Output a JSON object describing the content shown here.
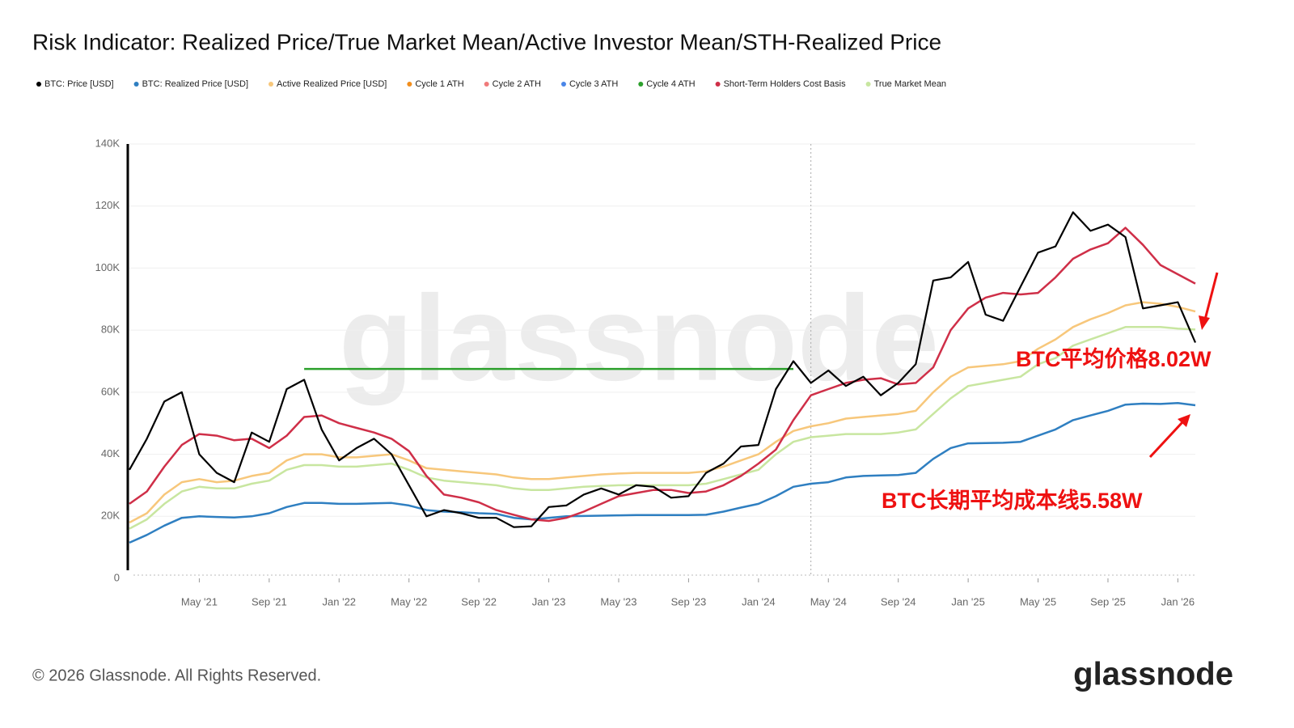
{
  "chart_data": {
    "type": "line",
    "title": "Risk Indicator: Realized Price/True Market Mean/Active Investor Mean/STH-Realized Price",
    "x": [
      "2021-01",
      "2021-02",
      "2021-03",
      "2021-04",
      "2021-05",
      "2021-06",
      "2021-07",
      "2021-08",
      "2021-09",
      "2021-10",
      "2021-11",
      "2021-12",
      "2022-01",
      "2022-02",
      "2022-03",
      "2022-04",
      "2022-05",
      "2022-06",
      "2022-07",
      "2022-08",
      "2022-09",
      "2022-10",
      "2022-11",
      "2022-12",
      "2023-01",
      "2023-02",
      "2023-03",
      "2023-04",
      "2023-05",
      "2023-06",
      "2023-07",
      "2023-08",
      "2023-09",
      "2023-10",
      "2023-11",
      "2023-12",
      "2024-01",
      "2024-02",
      "2024-03",
      "2024-04",
      "2024-05",
      "2024-06",
      "2024-07",
      "2024-08",
      "2024-09",
      "2024-10",
      "2024-11",
      "2024-12",
      "2025-01",
      "2025-02",
      "2025-03",
      "2025-04",
      "2025-05",
      "2025-06",
      "2025-07",
      "2025-08",
      "2025-09",
      "2025-10",
      "2025-11",
      "2025-12",
      "2026-01",
      "2026-02"
    ],
    "series": [
      {
        "name": "BTC: Price [USD]",
        "color": "#000000",
        "values": [
          35000,
          45000,
          57000,
          60000,
          40000,
          34000,
          31000,
          47000,
          44000,
          61000,
          64000,
          48000,
          38000,
          42000,
          45000,
          40000,
          30000,
          20000,
          22000,
          21000,
          19500,
          19500,
          16500,
          16800,
          23000,
          23500,
          27000,
          29000,
          27000,
          30000,
          29500,
          26000,
          26500,
          34000,
          37000,
          42500,
          43000,
          61000,
          70000,
          63000,
          67000,
          62000,
          65000,
          59000,
          63000,
          69000,
          96000,
          97000,
          102000,
          85000,
          83000,
          94000,
          105000,
          107000,
          118000,
          112000,
          114000,
          110000,
          87000,
          88000,
          89000,
          76000
        ]
      },
      {
        "name": "BTC: Realized Price [USD]",
        "color": "#2f7fc1",
        "values": [
          11500,
          14000,
          17000,
          19500,
          20000,
          19800,
          19600,
          20000,
          21000,
          23000,
          24300,
          24300,
          24000,
          24000,
          24200,
          24300,
          23500,
          22000,
          21500,
          21300,
          21000,
          20800,
          19500,
          19000,
          19500,
          20000,
          20100,
          20200,
          20300,
          20400,
          20400,
          20400,
          20400,
          20500,
          21500,
          22800,
          24000,
          26500,
          29500,
          30500,
          31000,
          32500,
          33000,
          33200,
          33300,
          34000,
          38500,
          42000,
          43500,
          43600,
          43700,
          44000,
          46000,
          48000,
          51000,
          52500,
          54000,
          56000,
          56300,
          56200,
          56500,
          55800
        ]
      },
      {
        "name": "Active Realized Price [USD]",
        "color": "#f7c77b",
        "values": [
          18000,
          21000,
          27000,
          31000,
          32000,
          31000,
          31500,
          33000,
          34000,
          38000,
          40000,
          40000,
          39000,
          39000,
          39500,
          40000,
          38000,
          35500,
          35000,
          34500,
          34000,
          33500,
          32500,
          32000,
          32000,
          32500,
          33000,
          33500,
          33800,
          34000,
          34000,
          34000,
          34000,
          34500,
          36000,
          38000,
          40000,
          44000,
          47500,
          49000,
          50000,
          51500,
          52000,
          52500,
          53000,
          54000,
          60000,
          65000,
          68000,
          68500,
          69000,
          70000,
          74000,
          77000,
          81000,
          83500,
          85500,
          88000,
          89000,
          88500,
          87500,
          86000
        ]
      },
      {
        "name": "Cycle 1 ATH",
        "color": "#f28e1c",
        "values": [
          null,
          null,
          null,
          null,
          null,
          null,
          null,
          null,
          null,
          null,
          null,
          null,
          null,
          null,
          null,
          null,
          null,
          null,
          null,
          null,
          null,
          null,
          null,
          null,
          null,
          null,
          null,
          null,
          null,
          null,
          null,
          null,
          null,
          null,
          null,
          null,
          null,
          null,
          null,
          null,
          null,
          null,
          null,
          null,
          null,
          null,
          null,
          null,
          null,
          null,
          null,
          null,
          null,
          null,
          null,
          null,
          null,
          null,
          null,
          null,
          null,
          null
        ]
      },
      {
        "name": "Cycle 2 ATH",
        "color": "#f07a7a",
        "values": [
          null,
          null,
          null,
          null,
          null,
          null,
          null,
          null,
          null,
          null,
          null,
          null,
          null,
          null,
          null,
          null,
          null,
          null,
          null,
          null,
          null,
          null,
          null,
          null,
          null,
          null,
          null,
          null,
          null,
          null,
          null,
          null,
          null,
          null,
          null,
          null,
          null,
          null,
          null,
          null,
          null,
          null,
          null,
          null,
          null,
          null,
          null,
          null,
          null,
          null,
          null,
          null,
          null,
          null,
          null,
          null,
          null,
          null,
          null,
          null,
          null,
          null
        ]
      },
      {
        "name": "Cycle 3 ATH",
        "color": "#4a86e8",
        "values": [
          null,
          null,
          null,
          null,
          null,
          null,
          null,
          null,
          null,
          null,
          null,
          null,
          null,
          null,
          null,
          null,
          null,
          null,
          null,
          null,
          null,
          null,
          null,
          null,
          null,
          null,
          null,
          null,
          null,
          null,
          null,
          null,
          null,
          null,
          null,
          null,
          null,
          null,
          null,
          null,
          null,
          null,
          null,
          null,
          null,
          null,
          null,
          null,
          null,
          null,
          null,
          null,
          null,
          null,
          null,
          null,
          null,
          null,
          null,
          null,
          null,
          null
        ]
      },
      {
        "name": "Cycle 4 ATH",
        "color": "#2ca02c",
        "values": [
          null,
          null,
          null,
          null,
          null,
          null,
          null,
          null,
          null,
          null,
          67500,
          67500,
          67500,
          67500,
          67500,
          67500,
          67500,
          67500,
          67500,
          67500,
          67500,
          67500,
          67500,
          67500,
          67500,
          67500,
          67500,
          67500,
          67500,
          67500,
          67500,
          67500,
          67500,
          67500,
          67500,
          67500,
          67500,
          67500,
          67500,
          null,
          null,
          null,
          null,
          null,
          null,
          null,
          null,
          null,
          null,
          null,
          null,
          null,
          null,
          null,
          null,
          null,
          null,
          null,
          null,
          null,
          null,
          null
        ]
      },
      {
        "name": "Short-Term Holders Cost Basis",
        "color": "#cf2f48",
        "values": [
          24000,
          28000,
          36000,
          43000,
          46500,
          46000,
          44500,
          45000,
          42000,
          46000,
          52000,
          52500,
          50000,
          48500,
          47000,
          45000,
          41000,
          33000,
          27000,
          26000,
          24500,
          22000,
          20500,
          19000,
          18500,
          19500,
          21500,
          24000,
          26500,
          27500,
          28500,
          28500,
          27500,
          28000,
          30000,
          33000,
          37000,
          41500,
          51000,
          59000,
          61000,
          63000,
          64000,
          64500,
          62500,
          63000,
          68000,
          80000,
          87000,
          90500,
          92000,
          91500,
          92000,
          97000,
          103000,
          106000,
          108000,
          113000,
          107500,
          101000,
          98000,
          95000
        ]
      },
      {
        "name": "True Market Mean",
        "color": "#c8e6a0",
        "values": [
          16000,
          19000,
          24000,
          28000,
          29500,
          29000,
          29000,
          30500,
          31500,
          35000,
          36500,
          36500,
          36000,
          36000,
          36500,
          37000,
          35000,
          32500,
          31500,
          31000,
          30500,
          30000,
          29000,
          28500,
          28500,
          29000,
          29500,
          29800,
          30000,
          30000,
          30000,
          30000,
          30000,
          30500,
          32000,
          33500,
          35000,
          40000,
          44000,
          45500,
          46000,
          46500,
          46500,
          46500,
          47000,
          48000,
          53000,
          58000,
          62000,
          63000,
          64000,
          65000,
          69000,
          71000,
          75000,
          77000,
          79000,
          81000,
          81000,
          81000,
          80500,
          80200
        ]
      }
    ],
    "draw_order": [
      6,
      1,
      8,
      2,
      7,
      0
    ],
    "xlim": [
      "2021-01",
      "2026-02"
    ],
    "xticks": [
      {
        "value": "2021-05",
        "label": "May '21"
      },
      {
        "value": "2021-09",
        "label": "Sep '21"
      },
      {
        "value": "2022-01",
        "label": "Jan '22"
      },
      {
        "value": "2022-05",
        "label": "May '22"
      },
      {
        "value": "2022-09",
        "label": "Sep '22"
      },
      {
        "value": "2023-01",
        "label": "Jan '23"
      },
      {
        "value": "2023-05",
        "label": "May '23"
      },
      {
        "value": "2023-09",
        "label": "Sep '23"
      },
      {
        "value": "2024-01",
        "label": "Jan '24"
      },
      {
        "value": "2024-05",
        "label": "May '24"
      },
      {
        "value": "2024-09",
        "label": "Sep '24"
      },
      {
        "value": "2025-01",
        "label": "Jan '25"
      },
      {
        "value": "2025-05",
        "label": "May '25"
      },
      {
        "value": "2025-09",
        "label": "Sep '25"
      },
      {
        "value": "2026-01",
        "label": "Jan '26"
      }
    ],
    "ylim": [
      0,
      140000
    ],
    "yticks": [
      0,
      {
        "value": 20000,
        "label": "20K"
      },
      {
        "value": 40000,
        "label": "40K"
      },
      {
        "value": 60000,
        "label": "60K"
      },
      {
        "value": 80000,
        "label": "80K"
      },
      {
        "value": 100000,
        "label": "100K"
      },
      {
        "value": 120000,
        "label": "120K"
      },
      {
        "value": 140000,
        "label": "140K"
      }
    ],
    "grid": true,
    "vline_x": "2024-04",
    "annotations": [
      "BTC平均价格8.02W",
      "BTC长期平均成本线5.58W"
    ],
    "watermark": "glassnode"
  },
  "footer": {
    "copyright": "© 2026 Glassnode. All Rights Reserved.",
    "logo": "glassnode"
  }
}
